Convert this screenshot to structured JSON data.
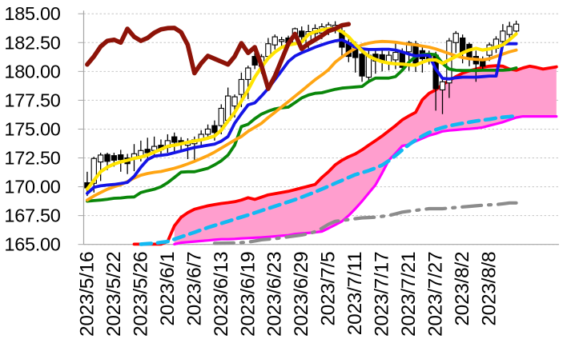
{
  "chart_data": {
    "type": "candlestick-with-overlays",
    "title": "",
    "y_axis": {
      "min": 165.0,
      "max": 185.0,
      "step": 2.5,
      "tick_labels": [
        "185.00",
        "182.50",
        "180.00",
        "177.50",
        "175.00",
        "172.50",
        "170.00",
        "167.50",
        "165.00"
      ]
    },
    "x_axis": {
      "tick_labels": [
        "2023/5/16",
        "2023/5/22",
        "2023/5/26",
        "2023/6/1",
        "2023/6/7",
        "2023/6/13",
        "2023/6/19",
        "2023/6/23",
        "2023/6/29",
        "2023/7/5",
        "2023/7/11",
        "2023/7/17",
        "2023/7/21",
        "2023/7/27",
        "2023/8/2",
        "2023/8/8"
      ],
      "label_every_n_slots": 4,
      "total_slots": 71
    },
    "grid": "horizontal-dashed",
    "legend": "none",
    "dates": [
      "2023/5/16",
      "2023/5/17",
      "2023/5/18",
      "2023/5/19",
      "2023/5/22",
      "2023/5/23",
      "2023/5/24",
      "2023/5/25",
      "2023/5/26",
      "2023/5/29",
      "2023/5/30",
      "2023/5/31",
      "2023/6/1",
      "2023/6/2",
      "2023/6/5",
      "2023/6/6",
      "2023/6/7",
      "2023/6/8",
      "2023/6/9",
      "2023/6/12",
      "2023/6/13",
      "2023/6/14",
      "2023/6/15",
      "2023/6/16",
      "2023/6/19",
      "2023/6/20",
      "2023/6/21",
      "2023/6/22",
      "2023/6/23",
      "2023/6/26",
      "2023/6/27",
      "2023/6/28",
      "2023/6/29",
      "2023/6/30",
      "2023/7/3",
      "2023/7/4",
      "2023/7/5",
      "2023/7/6",
      "2023/7/7",
      "2023/7/10",
      "2023/7/11",
      "2023/7/12",
      "2023/7/13",
      "2023/7/14",
      "2023/7/17",
      "2023/7/18",
      "2023/7/19",
      "2023/7/20",
      "2023/7/21",
      "2023/7/24",
      "2023/7/25",
      "2023/7/26",
      "2023/7/27",
      "2023/7/28",
      "2023/7/31",
      "2023/8/1",
      "2023/8/2",
      "2023/8/3",
      "2023/8/4",
      "2023/8/7",
      "2023/8/8",
      "2023/8/9",
      "2023/8/10",
      "2023/8/11",
      "2023/8/14"
    ],
    "candles": {
      "name": "daily-ohlc",
      "up_fill": "#FFFFFF",
      "down_fill": "#000000",
      "outline": "#000000",
      "ohlc": [
        [
          170.35,
          171.3,
          169.2,
          169.9
        ],
        [
          170.3,
          172.6,
          169.5,
          172.45
        ],
        [
          172.15,
          172.95,
          170.5,
          172.75
        ],
        [
          172.8,
          172.95,
          171.45,
          172.2
        ],
        [
          172.7,
          172.95,
          171.75,
          172.3
        ],
        [
          172.77,
          173.2,
          171.3,
          172.35
        ],
        [
          172.5,
          172.85,
          171.1,
          172.0
        ],
        [
          172.4,
          173.7,
          171.35,
          172.86
        ],
        [
          172.67,
          174.0,
          172.2,
          173.14
        ],
        [
          173.25,
          174.25,
          172.3,
          172.95
        ],
        [
          173.15,
          174.35,
          172.67,
          173.5
        ],
        [
          173.6,
          174.1,
          172.6,
          173.2
        ],
        [
          173.4,
          174.55,
          172.95,
          174.0
        ],
        [
          174.33,
          174.7,
          172.93,
          173.86
        ],
        [
          174.0,
          174.3,
          173.2,
          173.7
        ],
        [
          173.6,
          174.2,
          172.4,
          173.9
        ],
        [
          173.73,
          174.35,
          172.3,
          174.07
        ],
        [
          174.07,
          174.9,
          173.6,
          174.55
        ],
        [
          174.55,
          175.4,
          174.07,
          175.0
        ],
        [
          175.3,
          175.75,
          174.0,
          174.7
        ],
        [
          175.3,
          177.15,
          174.55,
          176.8
        ],
        [
          175.76,
          178.6,
          175.5,
          177.87
        ],
        [
          177.0,
          178.0,
          176.0,
          177.8
        ],
        [
          178.0,
          179.9,
          176.9,
          179.3
        ],
        [
          179.3,
          180.5,
          177.6,
          180.3
        ],
        [
          181.3,
          181.7,
          180.2,
          180.55
        ],
        [
          180.45,
          181.5,
          179.8,
          181.28
        ],
        [
          181.3,
          182.9,
          181.0,
          182.4
        ],
        [
          182.3,
          183.2,
          181.9,
          183.0
        ],
        [
          182.6,
          183.0,
          182.2,
          182.75
        ],
        [
          182.9,
          183.1,
          182.2,
          182.5
        ],
        [
          182.5,
          183.8,
          182.3,
          183.7
        ],
        [
          183.5,
          183.9,
          182.7,
          183.0
        ],
        [
          182.45,
          184.05,
          182.0,
          183.45
        ],
        [
          183.28,
          184.08,
          182.77,
          183.73
        ],
        [
          183.33,
          184.17,
          182.8,
          183.87
        ],
        [
          183.64,
          184.27,
          183.15,
          184.04
        ],
        [
          183.7,
          184.35,
          183.3,
          184.0
        ],
        [
          183.5,
          183.86,
          181.35,
          182.1
        ],
        [
          182.5,
          183.0,
          180.8,
          181.3
        ],
        [
          182.3,
          182.6,
          179.9,
          181.2
        ],
        [
          181.5,
          182.0,
          179.1,
          179.6
        ],
        [
          179.5,
          181.8,
          179.2,
          181.4
        ],
        [
          181.5,
          182.0,
          179.8,
          180.9
        ],
        [
          181.45,
          181.8,
          180.0,
          180.8
        ],
        [
          180.75,
          181.75,
          180.1,
          181.4
        ],
        [
          181.0,
          182.6,
          180.2,
          181.65
        ],
        [
          181.65,
          182.0,
          180.0,
          180.35
        ],
        [
          181.7,
          182.65,
          180.05,
          182.5
        ],
        [
          182.4,
          182.65,
          179.95,
          180.6
        ],
        [
          181.8,
          182.1,
          179.9,
          181.1
        ],
        [
          181.45,
          181.8,
          180.6,
          181.05
        ],
        [
          181.4,
          181.7,
          176.6,
          178.5
        ],
        [
          178.4,
          179.5,
          176.3,
          179.1
        ],
        [
          179.0,
          182.9,
          177.7,
          182.65
        ],
        [
          182.5,
          183.5,
          181.6,
          183.3
        ],
        [
          182.9,
          183.2,
          180.7,
          181.6
        ],
        [
          182.35,
          182.5,
          180.45,
          181.1
        ],
        [
          181.3,
          181.8,
          179.1,
          180.65
        ],
        [
          180.95,
          181.3,
          180.05,
          180.45
        ],
        [
          181.4,
          182.5,
          180.9,
          182.3
        ],
        [
          182.0,
          183.05,
          181.6,
          182.8
        ],
        [
          182.6,
          184.1,
          182.3,
          183.5
        ],
        [
          183.2,
          184.3,
          182.9,
          183.9
        ],
        [
          183.5,
          184.4,
          183.3,
          184.1
        ]
      ]
    },
    "series": [
      {
        "name": "lagging-close-line",
        "color": "#8D1308",
        "style": "solid",
        "width": 5.6,
        "start_slot": 0,
        "values": [
          180.6,
          181.3,
          182.15,
          182.65,
          182.75,
          182.5,
          183.7,
          183.0,
          182.65,
          182.9,
          183.35,
          183.65,
          183.75,
          183.77,
          183.4,
          182.3,
          179.85,
          180.7,
          181.35,
          181.1,
          180.85,
          180.6,
          181.3,
          182.45,
          181.6,
          182.1,
          180.5,
          178.5,
          179.6,
          181.0,
          182.4,
          183.25,
          181.95,
          182.4,
          182.75,
          183.1,
          183.5,
          183.7,
          184.0,
          184.1
        ]
      },
      {
        "name": "ma-fast-yellow",
        "color": "#FFE400",
        "style": "solid",
        "width": 4.2,
        "start_slot": 0,
        "values": [
          169.8,
          170.55,
          171.3,
          171.7,
          171.97,
          172.16,
          172.29,
          172.46,
          172.57,
          172.76,
          173.0,
          173.24,
          173.5,
          173.6,
          173.73,
          173.85,
          173.97,
          174.07,
          174.21,
          174.4,
          174.9,
          175.7,
          176.44,
          177.43,
          178.41,
          179.5,
          180.37,
          181.14,
          181.68,
          182.08,
          182.29,
          182.4,
          182.55,
          183.2,
          183.45,
          183.6,
          183.7,
          183.7,
          183.45,
          183.0,
          182.35,
          181.78,
          181.32,
          181.04,
          180.85,
          180.72,
          180.66,
          180.63,
          180.57,
          180.54,
          180.8,
          181.0,
          181.0,
          180.7,
          181.0,
          181.3,
          181.6,
          181.85,
          182.0,
          181.85,
          181.95,
          182.1,
          182.3,
          182.75,
          183.25
        ]
      },
      {
        "name": "ma-mid-blue",
        "color": "#1414E6",
        "style": "solid",
        "width": 3.8,
        "start_slot": 0,
        "values": [
          169.42,
          169.95,
          170.08,
          170.15,
          170.2,
          170.28,
          170.38,
          170.9,
          171.7,
          172.35,
          172.65,
          172.72,
          172.8,
          172.95,
          173.1,
          173.25,
          173.4,
          173.5,
          173.6,
          173.7,
          173.95,
          174.35,
          175.5,
          176.33,
          177.1,
          177.27,
          177.87,
          178.52,
          179.29,
          180.05,
          180.85,
          181.33,
          181.62,
          181.85,
          182.1,
          182.3,
          182.5,
          182.65,
          182.75,
          182.45,
          182.1,
          181.96,
          181.9,
          181.9,
          181.92,
          181.92,
          181.85,
          181.69,
          181.5,
          181.35,
          181.4,
          181.4,
          180.2,
          179.4,
          179.35,
          179.45,
          179.5,
          179.5,
          179.5,
          179.55,
          179.6,
          179.6,
          182.37,
          182.4,
          182.4
        ]
      },
      {
        "name": "ma-slow-orange",
        "color": "#FFA513",
        "style": "solid",
        "width": 3.8,
        "start_slot": 0,
        "values": [
          168.85,
          169.2,
          169.5,
          169.78,
          170.0,
          170.18,
          170.45,
          170.75,
          171.0,
          171.15,
          171.25,
          171.32,
          171.46,
          171.6,
          171.78,
          171.98,
          172.2,
          172.45,
          172.7,
          173.0,
          173.35,
          173.7,
          174.05,
          174.35,
          174.8,
          175.15,
          175.5,
          176.0,
          176.45,
          176.92,
          177.38,
          177.85,
          178.32,
          178.8,
          179.28,
          179.7,
          180.15,
          180.8,
          181.25,
          181.65,
          182.0,
          182.3,
          182.45,
          182.55,
          182.6,
          182.58,
          182.53,
          182.44,
          182.35,
          182.3,
          182.2,
          182.1,
          181.95,
          181.75,
          181.55,
          181.35,
          181.2,
          181.1,
          181.05,
          181.0,
          181.1,
          181.3,
          181.5,
          181.7,
          181.85
        ]
      },
      {
        "name": "ma-slower-green",
        "color": "#0A870A",
        "style": "solid",
        "width": 3.8,
        "start_slot": 0,
        "values": [
          168.75,
          168.8,
          168.85,
          168.92,
          169.0,
          169.03,
          169.1,
          169.12,
          169.5,
          169.65,
          169.78,
          170.0,
          170.35,
          170.8,
          171.27,
          171.3,
          171.3,
          171.45,
          171.6,
          171.9,
          172.25,
          172.75,
          173.6,
          175.22,
          175.42,
          175.9,
          176.3,
          176.55,
          176.75,
          176.85,
          176.9,
          177.3,
          177.7,
          177.95,
          178.1,
          178.15,
          178.3,
          178.45,
          178.55,
          178.6,
          178.65,
          178.7,
          179.13,
          179.42,
          179.42,
          179.42,
          179.55,
          180.1,
          180.8,
          181.3,
          181.45,
          181.5,
          181.45,
          180.7,
          180.2,
          180.1,
          180.08,
          180.08,
          180.08,
          180.1,
          180.1,
          180.1,
          180.1,
          180.15,
          180.3
        ]
      },
      {
        "name": "cloud-upper-red",
        "color": "#FF0000",
        "style": "solid",
        "width": 3.8,
        "start_slot": 7,
        "values": [
          165.02,
          165.02,
          165.02,
          165.02,
          165.02,
          165.25,
          166.6,
          167.35,
          167.75,
          168.05,
          168.2,
          168.35,
          168.45,
          168.55,
          168.62,
          168.7,
          168.85,
          169.05,
          168.9,
          169.1,
          169.3,
          169.4,
          169.5,
          169.6,
          169.75,
          169.9,
          170.05,
          170.2,
          170.8,
          171.3,
          171.9,
          172.3,
          172.6,
          172.85,
          173.2,
          173.6,
          174.0,
          174.4,
          174.85,
          175.3,
          175.8,
          176.15,
          176.45,
          177.55,
          178.1,
          178.4,
          178.85,
          179.2,
          179.55,
          179.85,
          180.05,
          180.2,
          180.35,
          180.45,
          180.5,
          180.45,
          180.2,
          180.1,
          180.3,
          180.45,
          180.35,
          180.2,
          180.3,
          180.4
        ]
      },
      {
        "name": "cloud-lower-magenta",
        "color": "#FF00FF",
        "style": "solid",
        "width": 3.2,
        "start_slot": 13,
        "values": [
          165.02,
          165.15,
          165.2,
          165.25,
          165.3,
          165.35,
          165.4,
          165.45,
          165.45,
          165.48,
          165.52,
          165.55,
          165.58,
          165.6,
          165.65,
          165.7,
          165.75,
          165.8,
          165.9,
          165.95,
          166.0,
          166.05,
          166.12,
          166.4,
          166.7,
          167.0,
          167.5,
          168.1,
          168.75,
          169.45,
          170.15,
          171.2,
          172.3,
          172.9,
          173.55,
          173.65,
          173.95,
          174.2,
          174.45,
          174.6,
          174.8,
          174.88,
          174.93,
          174.98,
          175.02,
          175.07,
          175.15,
          175.3,
          175.45,
          175.6,
          175.8,
          176.0,
          176.1,
          176.1,
          176.1,
          176.1,
          176.1,
          176.1
        ]
      },
      {
        "name": "trend-dashed-cyan",
        "color": "#12B9F2",
        "style": "dashed",
        "width": 4.6,
        "start_slot": 8,
        "values": [
          165.02,
          165.06,
          165.1,
          165.17,
          165.25,
          165.45,
          165.65,
          165.85,
          166.05,
          166.26,
          166.46,
          166.64,
          166.82,
          167.0,
          167.19,
          167.37,
          167.55,
          167.74,
          167.93,
          168.12,
          168.31,
          168.5,
          168.69,
          168.88,
          169.1,
          169.32,
          169.55,
          169.8,
          170.05,
          170.3,
          170.55,
          170.8,
          171.05,
          171.22,
          171.4,
          171.62,
          171.88,
          172.25,
          172.7,
          173.2,
          173.65,
          174.05,
          174.4,
          174.7,
          174.95,
          175.13,
          175.28,
          175.4,
          175.5,
          175.6,
          175.7,
          175.78,
          175.85,
          175.95,
          176.02,
          176.08,
          176.15
        ]
      },
      {
        "name": "trend-dashdot-gray",
        "color": "#8C8C8C",
        "style": "dashdot",
        "width": 4.2,
        "start_slot": 19,
        "values": [
          165.1,
          165.11,
          165.12,
          165.13,
          165.16,
          165.2,
          165.3,
          165.4,
          165.45,
          165.5,
          165.58,
          165.66,
          165.74,
          165.82,
          165.92,
          166.1,
          166.4,
          166.75,
          167.0,
          167.08,
          167.15,
          167.23,
          167.3,
          167.33,
          167.36,
          167.43,
          167.5,
          167.65,
          167.8,
          167.88,
          167.95,
          168.03,
          168.1,
          168.1,
          168.1,
          168.15,
          168.2,
          168.25,
          168.3,
          168.35,
          168.4,
          168.43,
          168.45,
          168.52,
          168.6,
          168.6
        ]
      }
    ],
    "cloud": {
      "name": "cloud-fill",
      "fill": "#FF9ECE",
      "upper": "cloud-upper-red",
      "lower": "cloud-lower-magenta"
    }
  }
}
